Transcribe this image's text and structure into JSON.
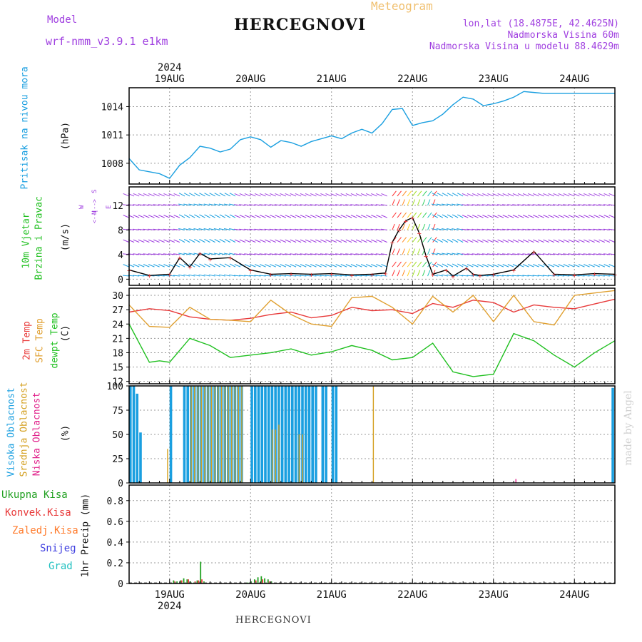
{
  "header": {
    "model_label": "Model",
    "model_name": "wrf-nmm_v3.9.1 e1km",
    "title": "HERCEGNOVI",
    "meteogram_label": "Meteogram",
    "lonlat": "lon,lat (18.4875E, 42.4625N)",
    "altitude": "Nadmorska Visina 60m",
    "model_altitude": "Nadmorska Visina u modelu 88.4629m"
  },
  "footer": {
    "title": "HERCEGNOVI",
    "watermark": "made by Angel"
  },
  "colors": {
    "pressure": "#1a9fe0",
    "temp2m": "#e83a3a",
    "sfc_temp": "#e0a030",
    "dewpt": "#20c020",
    "high_cloud": "#1a9fe0",
    "mid_cloud": "#d4a020",
    "low_cloud": "#e0208a",
    "rain_total": "#20a020",
    "rain_conv": "#e83a3a",
    "freezing": "#ff7a2a",
    "snow": "#4040e0",
    "hail": "#20c0c0",
    "wind_label": "#20c020",
    "compass": "#a040e0",
    "cloud_label_high": "#1a9fe0"
  },
  "chart_data": [
    {
      "type": "line",
      "title": "",
      "ylabel": "Pritisak na nivou mora",
      "unit": "(hPa)",
      "ylim": [
        1005.8,
        1016
      ],
      "yticks": [
        1008,
        1011,
        1014
      ],
      "x_axis": {
        "start": "2024-08-18 12:00",
        "end": "2024-08-24 12:00",
        "ticks": [
          "19AUG",
          "20AUG",
          "21AUG",
          "22AUG",
          "23AUG",
          "24AUG"
        ],
        "year": "2024"
      },
      "series": [
        {
          "name": "",
          "x": [
            0,
            3,
            6,
            9,
            12,
            15,
            18,
            21,
            24,
            27,
            30,
            33,
            36,
            39,
            42,
            45,
            48,
            51,
            54,
            57,
            60,
            63,
            66,
            69,
            72,
            75,
            78,
            81,
            84,
            87,
            90,
            93,
            96,
            99,
            102,
            105,
            108,
            111,
            114,
            117,
            120,
            123,
            126,
            129,
            132,
            135,
            138,
            141,
            144
          ],
          "values": [
            1008.5,
            1007.3,
            1007.1,
            1006.9,
            1006.4,
            1007.8,
            1008.6,
            1009.8,
            1009.6,
            1009.2,
            1009.5,
            1010.5,
            1010.8,
            1010.5,
            1009.7,
            1010.4,
            1010.2,
            1009.8,
            1010.3,
            1010.6,
            1010.9,
            1010.6,
            1011.2,
            1011.6,
            1011.2,
            1012.2,
            1013.7,
            1013.8,
            1012.0,
            1012.3,
            1012.5,
            1013.2,
            1014.2,
            1015.0,
            1014.8,
            1014.1,
            1014.3,
            1014.6,
            1015.0,
            1015.6,
            1015.5,
            1015.4,
            1015.4,
            1015.4,
            1015.4,
            1015.4,
            1015.4,
            1015.4,
            1015.4
          ]
        }
      ]
    },
    {
      "type": "line",
      "title": "",
      "ylabel": "10m Vjetar Brzina i Pravac",
      "unit": "(m/s)",
      "ylim": [
        -1,
        15
      ],
      "yticks": [
        0,
        4,
        8,
        12
      ],
      "compass": "N W E S",
      "series": [
        {
          "name": "",
          "x": [
            0,
            6,
            12,
            15,
            18,
            21,
            24,
            30,
            36,
            42,
            48,
            54,
            60,
            66,
            72,
            76,
            78,
            80,
            82,
            84,
            86,
            88,
            90,
            94,
            96,
            100,
            102,
            104,
            108,
            114,
            120,
            126,
            132,
            138,
            144
          ],
          "values": [
            1.5,
            0.6,
            0.8,
            3.5,
            2.0,
            4.2,
            3.3,
            3.5,
            1.5,
            0.8,
            0.9,
            0.8,
            0.9,
            0.7,
            0.8,
            1.0,
            6.0,
            8.0,
            9.5,
            10.0,
            7.5,
            3.8,
            0.8,
            1.5,
            0.5,
            1.8,
            0.8,
            0.6,
            0.8,
            1.5,
            4.5,
            0.8,
            0.7,
            0.9,
            0.8
          ]
        }
      ]
    },
    {
      "type": "line",
      "title": "",
      "ylabel": "2m Temp / SFC Temp / dewpt Temp",
      "unit": "(C)",
      "ylim": [
        11.5,
        31.5
      ],
      "yticks": [
        12,
        15,
        18,
        21,
        24,
        27,
        30
      ],
      "series": [
        {
          "name": "2m Temp",
          "x": [
            0,
            6,
            12,
            18,
            24,
            30,
            36,
            42,
            48,
            54,
            60,
            66,
            72,
            78,
            84,
            90,
            96,
            102,
            108,
            114,
            120,
            126,
            132,
            138,
            144
          ],
          "values": [
            26.5,
            27.2,
            26.8,
            25.5,
            25.0,
            24.8,
            25.2,
            26.0,
            26.5,
            25.3,
            25.8,
            27.5,
            26.8,
            27.0,
            26.2,
            28.3,
            27.5,
            29.0,
            28.5,
            26.5,
            28.0,
            27.5,
            27.2,
            28.2,
            29.2
          ]
        },
        {
          "name": "SFC Temp",
          "x": [
            0,
            6,
            12,
            18,
            24,
            30,
            36,
            42,
            48,
            54,
            60,
            66,
            72,
            78,
            84,
            90,
            96,
            102,
            108,
            114,
            120,
            126,
            132,
            138,
            144
          ],
          "values": [
            28.0,
            23.5,
            23.3,
            27.5,
            25.0,
            24.8,
            24.5,
            29.0,
            26.0,
            24.0,
            23.5,
            29.5,
            29.8,
            27.5,
            24.0,
            29.8,
            26.5,
            30.0,
            24.5,
            30.0,
            24.5,
            23.8,
            30.0,
            30.5,
            31.0
          ]
        },
        {
          "name": "dewpt Temp",
          "x": [
            0,
            3,
            6,
            9,
            12,
            18,
            24,
            30,
            36,
            42,
            48,
            54,
            60,
            66,
            72,
            78,
            84,
            90,
            96,
            102,
            108,
            114,
            120,
            126,
            132,
            138,
            144
          ],
          "values": [
            24.0,
            20.0,
            16.0,
            16.3,
            16.0,
            21.0,
            19.5,
            17.0,
            17.5,
            18.0,
            18.8,
            17.5,
            18.2,
            19.5,
            18.5,
            16.5,
            17.0,
            20.0,
            14.0,
            13.0,
            13.5,
            22.0,
            20.5,
            17.5,
            15.0,
            18.0,
            20.5
          ]
        }
      ]
    },
    {
      "type": "bar",
      "title": "",
      "ylabel": "Visoka Oblacnost / Srednja Oblacnost / Niska Oblacnost",
      "unit": "(%)",
      "ylim": [
        0,
        100
      ],
      "yticks": [
        0,
        25,
        50,
        75,
        100
      ],
      "series": [
        {
          "name": "Visoka Oblacnost",
          "x": [
            0,
            1,
            2,
            3,
            4,
            12,
            16,
            17,
            18,
            19,
            20,
            21,
            22,
            23,
            24,
            25,
            26,
            27,
            28,
            29,
            30,
            31,
            32,
            33,
            36,
            37,
            38,
            39,
            40,
            41,
            42,
            43,
            44,
            45,
            46,
            47,
            48,
            49,
            50,
            51,
            52,
            53,
            54,
            55,
            57,
            58,
            60,
            61,
            143
          ],
          "values": [
            100,
            100,
            92,
            52,
            0,
            100,
            100,
            100,
            100,
            100,
            100,
            100,
            100,
            100,
            100,
            100,
            100,
            100,
            100,
            100,
            100,
            100,
            100,
            100,
            100,
            100,
            100,
            100,
            100,
            100,
            100,
            100,
            100,
            100,
            100,
            100,
            100,
            100,
            100,
            100,
            100,
            100,
            100,
            100,
            100,
            100,
            100,
            100,
            98
          ]
        },
        {
          "name": "Srednja Oblacnost",
          "x": [
            11,
            18,
            19,
            20,
            21,
            22,
            23,
            24,
            25,
            26,
            27,
            28,
            29,
            30,
            31,
            32,
            33,
            42,
            43,
            44,
            50,
            51,
            72
          ],
          "values": [
            35,
            100,
            100,
            100,
            100,
            100,
            100,
            100,
            100,
            100,
            100,
            100,
            100,
            100,
            100,
            100,
            100,
            55,
            55,
            60,
            50,
            50,
            100
          ]
        },
        {
          "name": "Niska Oblacnost",
          "x": [
            114
          ],
          "values": [
            4
          ]
        }
      ]
    },
    {
      "type": "bar",
      "title": "",
      "ylabel": "1hr Precip",
      "unit": "(mm)",
      "ylim": [
        0,
        0.95
      ],
      "yticks": [
        0,
        0.2,
        0.4,
        0.6,
        0.8
      ],
      "legend": [
        "Ukupna Kisa",
        "Konvek.Kisa",
        "Zaledj.Kisa",
        "Snijeg",
        "Grad"
      ],
      "series": [
        {
          "name": "Ukupna Kisa",
          "x": [
            12,
            13,
            14,
            15,
            16,
            17,
            18,
            19,
            20,
            21,
            22,
            35,
            36,
            37,
            38,
            39,
            40,
            41,
            42
          ],
          "values": [
            0.01,
            0.03,
            0.02,
            0.03,
            0.05,
            0.04,
            0.02,
            0.01,
            0.03,
            0.21,
            0.02,
            0.01,
            0.02,
            0.04,
            0.06,
            0.07,
            0.05,
            0.04,
            0.02
          ]
        },
        {
          "name": "Konvek.Kisa",
          "x": [
            13,
            15,
            17,
            19,
            20,
            21,
            37,
            39,
            41
          ],
          "values": [
            0.02,
            0.03,
            0.04,
            0.02,
            0.03,
            0.04,
            0.03,
            0.04,
            0.02
          ]
        }
      ]
    }
  ]
}
